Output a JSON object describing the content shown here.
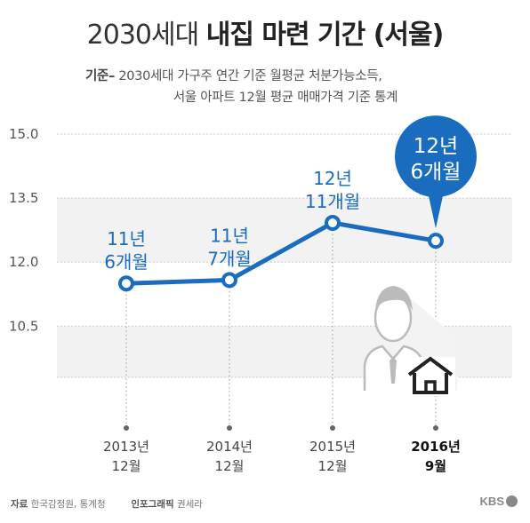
{
  "title_light": "2030세대",
  "title_bold": "내집 마련 기간 (서울)",
  "subtitle": {
    "lead": "기준–",
    "line1": "2030세대 가구주 연간 기준 월평균 처분가능소득,",
    "line2": "서울 아파트 12월 평균 매매가격 기준 통계"
  },
  "footer": {
    "source_label": "자료",
    "source": "한국감정원, 통계청",
    "credit_label": "인포그래픽",
    "credit": "권세라"
  },
  "logo": "KBS",
  "colors": {
    "line": "#1a6cbf",
    "accent": "#1a6cbf",
    "label": "#1a6cbf",
    "band": "#f2f2f2"
  },
  "icons": [
    "person-icon",
    "house-icon"
  ],
  "chart_data": {
    "type": "line",
    "ylim": [
      9.3,
      15.0
    ],
    "yticks": [
      15.0,
      13.5,
      12.0,
      10.5
    ],
    "ytick_labels": [
      "15.0",
      "13.5",
      "12.0",
      "10.5"
    ],
    "categories": [
      "2013년 12월",
      "2014년 12월",
      "2015년 12월",
      "2016년 9월"
    ],
    "category_lines": [
      [
        "2013년",
        "12월"
      ],
      [
        "2014년",
        "12월"
      ],
      [
        "2015년",
        "12월"
      ],
      [
        "2016년",
        "9월"
      ]
    ],
    "values": [
      11.5,
      11.58,
      12.92,
      12.5
    ],
    "point_labels": [
      [
        "11년",
        "6개월"
      ],
      [
        "11년",
        "7개월"
      ],
      [
        "12년",
        "11개월"
      ],
      [
        "12년",
        "6개월"
      ]
    ],
    "highlight_index": 3
  }
}
